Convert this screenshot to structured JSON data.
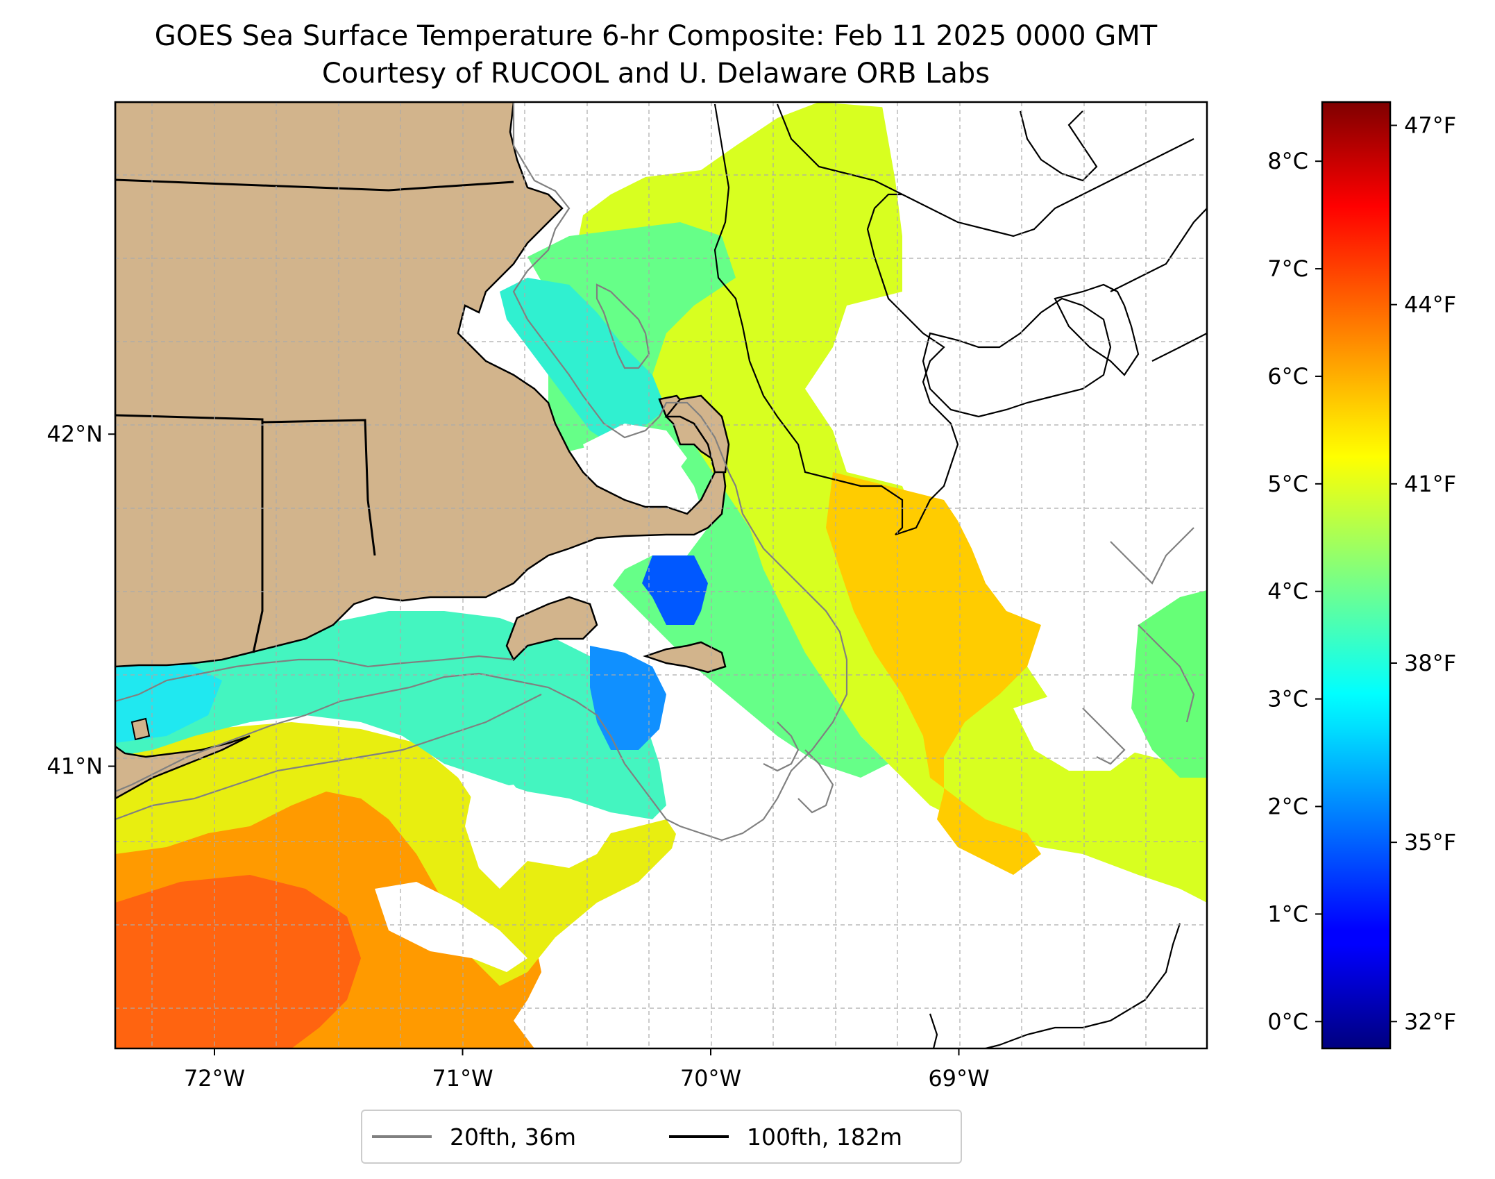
{
  "title": {
    "line1": "GOES Sea Surface Temperature 6-hr Composite: Feb 11 2025 0000 GMT",
    "line2": "Courtesy of RUCOOL and U. Delaware ORB Labs"
  },
  "map": {
    "extent_lon": [
      -72.4,
      -68.0
    ],
    "extent_lat": [
      40.15,
      43.0
    ],
    "x_ticks": [
      {
        "value": -72,
        "label": "72°W"
      },
      {
        "value": -71,
        "label": "71°W"
      },
      {
        "value": -70,
        "label": "70°W"
      },
      {
        "value": -69,
        "label": "69°W"
      }
    ],
    "y_ticks": [
      {
        "value": 41,
        "label": "41°N"
      },
      {
        "value": 42,
        "label": "42°N"
      }
    ],
    "gridlines": true,
    "land_color": "#d2b48c",
    "coast_color": "#000000"
  },
  "colorbar": {
    "colormap": "jet",
    "celsius_range": [
      -0.25,
      8.55
    ],
    "celsius_ticks": [
      {
        "value": 0,
        "label": "0°C"
      },
      {
        "value": 1,
        "label": "1°C"
      },
      {
        "value": 2,
        "label": "2°C"
      },
      {
        "value": 3,
        "label": "3°C"
      },
      {
        "value": 4,
        "label": "4°C"
      },
      {
        "value": 5,
        "label": "5°C"
      },
      {
        "value": 6,
        "label": "6°C"
      },
      {
        "value": 7,
        "label": "7°C"
      },
      {
        "value": 8,
        "label": "8°C"
      }
    ],
    "fahrenheit_ticks": [
      {
        "value": 32,
        "label": "32°F"
      },
      {
        "value": 35,
        "label": "35°F"
      },
      {
        "value": 38,
        "label": "38°F"
      },
      {
        "value": 41,
        "label": "41°F"
      },
      {
        "value": 44,
        "label": "44°F"
      },
      {
        "value": 47,
        "label": "47°F"
      }
    ]
  },
  "legend": {
    "placement": "bottom-center",
    "items": [
      {
        "label": "20fth, 36m",
        "color": "#808080"
      },
      {
        "label": "100fth, 182m",
        "color": "#000000"
      }
    ]
  }
}
